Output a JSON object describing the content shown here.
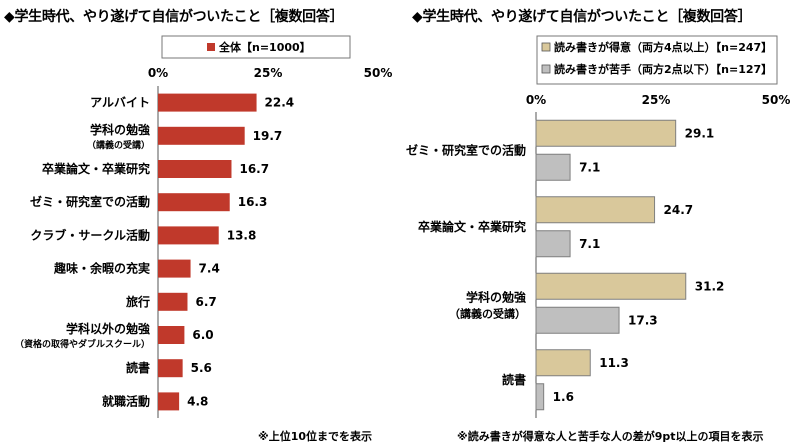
{
  "chart_data": [
    {
      "type": "bar",
      "orientation": "horizontal",
      "title": "◆学生時代、やり遂げて自信がついたこと［複数回答］",
      "xlim": [
        0,
        50
      ],
      "tick_labels": [
        "0%",
        "25%",
        "50%"
      ],
      "series": [
        {
          "name": "全体【n=1000】",
          "color": "#c0392b",
          "values": [
            22.4,
            19.7,
            16.7,
            16.3,
            13.8,
            7.4,
            6.7,
            6.0,
            5.6,
            4.8
          ]
        }
      ],
      "categories": [
        {
          "label": "アルバイト",
          "sub": ""
        },
        {
          "label": "学科の勉強",
          "sub": "（講義の受講）"
        },
        {
          "label": "卒業論文・卒業研究",
          "sub": ""
        },
        {
          "label": "ゼミ・研究室での活動",
          "sub": ""
        },
        {
          "label": "クラブ・サークル活動",
          "sub": ""
        },
        {
          "label": "趣味・余暇の充実",
          "sub": ""
        },
        {
          "label": "旅行",
          "sub": ""
        },
        {
          "label": "学科以外の勉強",
          "sub": "（資格の取得やダブルスクール）"
        },
        {
          "label": "読書",
          "sub": ""
        },
        {
          "label": "就職活動",
          "sub": ""
        }
      ],
      "value_labels": [
        "22.4",
        "19.7",
        "16.7",
        "16.3",
        "13.8",
        "7.4",
        "6.7",
        "6.0",
        "5.6",
        "4.8"
      ],
      "note": "※上位10位までを表示"
    },
    {
      "type": "bar",
      "orientation": "horizontal",
      "title": "◆学生時代、やり遂げて自信がついたこと［複数回答］",
      "xlim": [
        0,
        50
      ],
      "tick_labels": [
        "0%",
        "25%",
        "50%"
      ],
      "series": [
        {
          "name": "読み書きが得意（両方4点以上）【n=247】",
          "color": "#d9c89b",
          "values": [
            29.1,
            24.7,
            31.2,
            11.3
          ],
          "value_labels": [
            "29.1",
            "24.7",
            "31.2",
            "11.3"
          ]
        },
        {
          "name": "読み書きが苦手（両方2点以下）【n=127】",
          "color": "#bfbfbf",
          "values": [
            7.1,
            7.1,
            17.3,
            1.6
          ],
          "value_labels": [
            "7.1",
            "7.1",
            "17.3",
            "1.6"
          ]
        }
      ],
      "categories": [
        {
          "label": "ゼミ・研究室での活動",
          "sub": ""
        },
        {
          "label": "卒業論文・卒業研究",
          "sub": ""
        },
        {
          "label": "学科の勉強",
          "sub": "（講義の受講）"
        },
        {
          "label": "読書",
          "sub": ""
        }
      ],
      "note": "※読み書きが得意な人と苦手な人の差が9pt以上の項目を表示"
    }
  ]
}
